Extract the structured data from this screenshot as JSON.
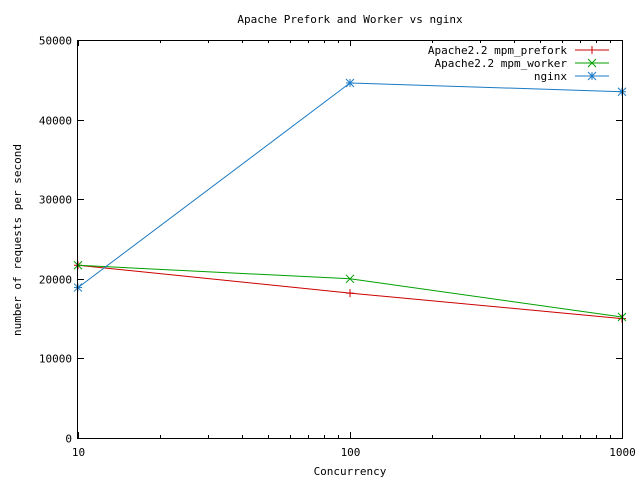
{
  "chart_data": {
    "type": "line",
    "title": "Apache Prefork and Worker vs nginx",
    "xlabel": "Concurrency",
    "ylabel": "number of requests per second",
    "x_scale": "log",
    "x": [
      10,
      100,
      1000
    ],
    "x_tick_labels": [
      "10",
      "100",
      "1000"
    ],
    "xlim": [
      10,
      1000
    ],
    "ylim": [
      0,
      50000
    ],
    "y_ticks": [
      0,
      10000,
      20000,
      30000,
      40000,
      50000
    ],
    "y_tick_labels": [
      "0",
      "10000",
      "20000",
      "30000",
      "40000",
      "50000"
    ],
    "grid": false,
    "legend_position": "top-right",
    "series": [
      {
        "name": "Apache2.2 mpm_prefork",
        "values": [
          21700,
          18200,
          15000
        ],
        "color": "#cc0000",
        "marker": "plus"
      },
      {
        "name": "Apache2.2 mpm_worker",
        "values": [
          21700,
          20000,
          15200
        ],
        "color": "#00a000",
        "marker": "cross"
      },
      {
        "name": "nginx",
        "values": [
          18900,
          44600,
          43500
        ],
        "color": "#1a7ac4",
        "marker": "star"
      }
    ]
  }
}
